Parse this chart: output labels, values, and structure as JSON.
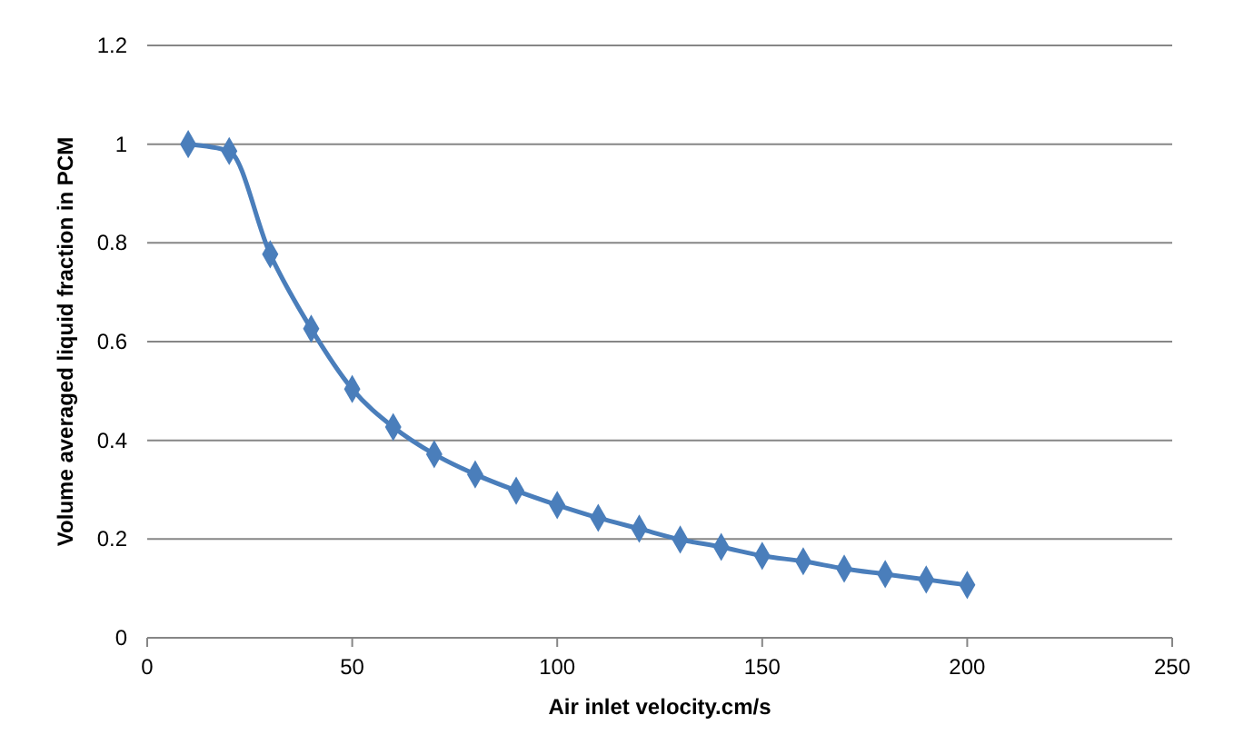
{
  "chart_data": {
    "type": "line",
    "xlabel": "Air inlet velocity.cm/s",
    "ylabel": "Volume averaged liquid fraction in PCM",
    "x": [
      10,
      20,
      30,
      40,
      50,
      60,
      70,
      80,
      90,
      100,
      110,
      120,
      130,
      140,
      150,
      160,
      170,
      180,
      190,
      200
    ],
    "series": [
      {
        "color": "#4a7ebb",
        "values": [
          1.0,
          0.986,
          0.777,
          0.626,
          0.504,
          0.427,
          0.372,
          0.331,
          0.298,
          0.269,
          0.243,
          0.221,
          0.199,
          0.184,
          0.166,
          0.155,
          0.14,
          0.129,
          0.118,
          0.107
        ]
      }
    ],
    "xlim": [
      0,
      250
    ],
    "xticks": [
      0,
      50,
      100,
      150,
      200,
      250
    ],
    "ylim": [
      0,
      1.2
    ],
    "yticks": [
      0,
      0.2,
      0.4,
      0.6,
      0.8,
      1,
      1.2
    ],
    "grid": "y",
    "marker": "diamond",
    "line_style": "solid"
  }
}
